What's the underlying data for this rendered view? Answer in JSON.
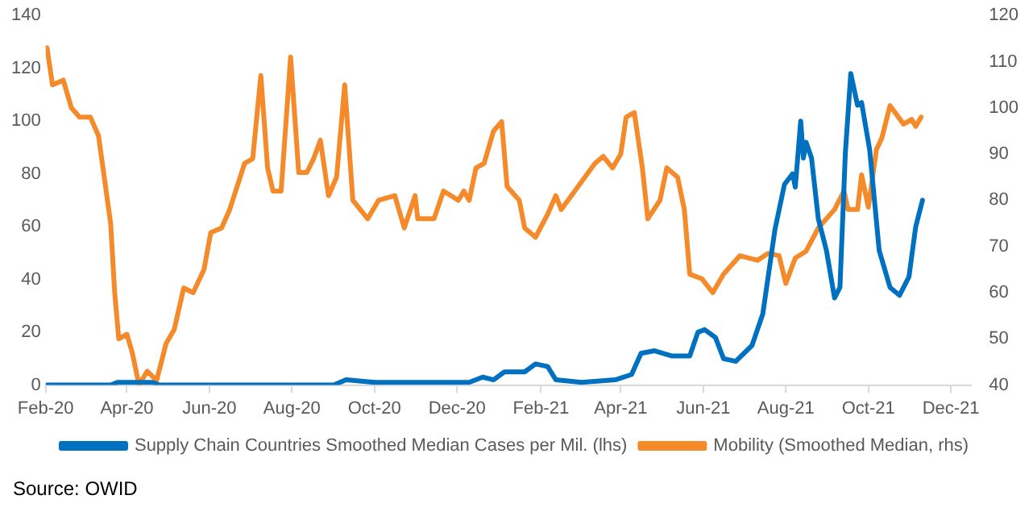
{
  "chart_data": {
    "type": "line",
    "annotations": [
      "Source: OWID"
    ],
    "xlim": [
      "2020-02-01",
      "2021-12-16"
    ],
    "xticks": [
      {
        "value": "2020-02-01",
        "label": "Feb-20"
      },
      {
        "value": "2020-04-01",
        "label": "Apr-20"
      },
      {
        "value": "2020-06-01",
        "label": "Jun-20"
      },
      {
        "value": "2020-08-01",
        "label": "Aug-20"
      },
      {
        "value": "2020-10-01",
        "label": "Oct-20"
      },
      {
        "value": "2020-12-01",
        "label": "Dec-20"
      },
      {
        "value": "2021-02-01",
        "label": "Feb-21"
      },
      {
        "value": "2021-04-01",
        "label": "Apr-21"
      },
      {
        "value": "2021-06-01",
        "label": "Jun-21"
      },
      {
        "value": "2021-08-01",
        "label": "Aug-21"
      },
      {
        "value": "2021-10-01",
        "label": "Oct-21"
      },
      {
        "value": "2021-12-01",
        "label": "Dec-21"
      }
    ],
    "ylim": [
      0,
      140
    ],
    "yticks": [
      0,
      20,
      40,
      60,
      80,
      100,
      120,
      140
    ],
    "y2lim": [
      40,
      120
    ],
    "y2ticks": [
      40,
      50,
      60,
      70,
      80,
      90,
      100,
      110,
      120
    ],
    "grid": false,
    "legend": "bottom",
    "marker": "none",
    "line_style": "solid",
    "series": [
      {
        "name": "Supply Chain Countries Smoothed Median Cases per Mil. (lhs)",
        "color": "#0070c0",
        "x": [
          "2020-02-02",
          "2020-03-20",
          "2020-03-25",
          "2020-04-20",
          "2020-04-25",
          "2020-09-01",
          "2020-09-10",
          "2020-10-01",
          "2020-11-20",
          "2020-12-10",
          "2020-12-20",
          "2020-12-28",
          "2021-01-05",
          "2021-01-20",
          "2021-01-28",
          "2021-02-06",
          "2021-02-12",
          "2021-03-03",
          "2021-03-28",
          "2021-04-09",
          "2021-04-16",
          "2021-04-26",
          "2021-05-09",
          "2021-05-22",
          "2021-05-28",
          "2021-06-02",
          "2021-06-10",
          "2021-06-16",
          "2021-06-25",
          "2021-07-07",
          "2021-07-15",
          "2021-07-24",
          "2021-07-31",
          "2021-08-06",
          "2021-08-08",
          "2021-08-12",
          "2021-08-14",
          "2021-08-16",
          "2021-08-20",
          "2021-08-25",
          "2021-08-31",
          "2021-09-06",
          "2021-09-10",
          "2021-09-14",
          "2021-09-18",
          "2021-09-23",
          "2021-09-26",
          "2021-10-02",
          "2021-10-09",
          "2021-10-17",
          "2021-10-24",
          "2021-10-31",
          "2021-11-05",
          "2021-11-10"
        ],
        "values": [
          0,
          0,
          1,
          1,
          0,
          0,
          2,
          1,
          1,
          1,
          3,
          2,
          5,
          5,
          8,
          7,
          2,
          1,
          2,
          4,
          12,
          13,
          11,
          11,
          20,
          21,
          18,
          10,
          9,
          15,
          27,
          59,
          76,
          80,
          75,
          100,
          86,
          92,
          86,
          63,
          51,
          33,
          37,
          88,
          118,
          106,
          107,
          89,
          51,
          37,
          34,
          41,
          60,
          70
        ]
      },
      {
        "name": "Mobility (Smoothed Median, rhs)",
        "color": "#f58a2a",
        "axis": "y2",
        "x": [
          "2020-02-02",
          "2020-02-06",
          "2020-02-14",
          "2020-02-20",
          "2020-02-26",
          "2020-03-05",
          "2020-03-11",
          "2020-03-20",
          "2020-03-23",
          "2020-03-26",
          "2020-04-01",
          "2020-04-05",
          "2020-04-10",
          "2020-04-16",
          "2020-04-23",
          "2020-04-30",
          "2020-05-06",
          "2020-05-13",
          "2020-05-20",
          "2020-05-28",
          "2020-06-02",
          "2020-06-10",
          "2020-06-16",
          "2020-06-27",
          "2020-07-03",
          "2020-07-09",
          "2020-07-14",
          "2020-07-18",
          "2020-07-24",
          "2020-07-31",
          "2020-08-06",
          "2020-08-12",
          "2020-08-17",
          "2020-08-22",
          "2020-08-28",
          "2020-09-03",
          "2020-09-09",
          "2020-09-15",
          "2020-09-26",
          "2020-10-04",
          "2020-10-16",
          "2020-10-23",
          "2020-10-31",
          "2020-11-02",
          "2020-11-14",
          "2020-11-21",
          "2020-12-02",
          "2020-12-06",
          "2020-12-10",
          "2020-12-15",
          "2020-12-21",
          "2020-12-28",
          "2021-01-03",
          "2021-01-07",
          "2021-01-16",
          "2021-01-20",
          "2021-01-28",
          "2021-02-06",
          "2021-02-12",
          "2021-02-16",
          "2021-02-21",
          "2021-03-03",
          "2021-03-13",
          "2021-03-19",
          "2021-03-26",
          "2021-04-01",
          "2021-04-05",
          "2021-04-11",
          "2021-04-17",
          "2021-04-21",
          "2021-04-30",
          "2021-05-05",
          "2021-05-13",
          "2021-05-18",
          "2021-05-22",
          "2021-05-31",
          "2021-06-08",
          "2021-06-16",
          "2021-06-28",
          "2021-07-11",
          "2021-07-19",
          "2021-07-27",
          "2021-08-01",
          "2021-08-08",
          "2021-08-16",
          "2021-08-25",
          "2021-09-06",
          "2021-09-13",
          "2021-09-16",
          "2021-09-23",
          "2021-09-26",
          "2021-10-01",
          "2021-10-07",
          "2021-10-11",
          "2021-10-17",
          "2021-10-27",
          "2021-11-02",
          "2021-11-05",
          "2021-11-09"
        ],
        "values": [
          113,
          105,
          106,
          100,
          98,
          98,
          94,
          75,
          60,
          50,
          51,
          47,
          40,
          43,
          41,
          49,
          52,
          61,
          60,
          65,
          73,
          74,
          78,
          88,
          89,
          107,
          87,
          82,
          82,
          111,
          86,
          86,
          89,
          93,
          81,
          85,
          105,
          80,
          76,
          80,
          81,
          74,
          81,
          76,
          76,
          82,
          80,
          82,
          80,
          87,
          88,
          95,
          97,
          83,
          80,
          74,
          72,
          77,
          81,
          78,
          80,
          84,
          88,
          89.5,
          87,
          90,
          98,
          99,
          87,
          76,
          80,
          87,
          85,
          78,
          64,
          63,
          60,
          64,
          68,
          67,
          68.5,
          68,
          62,
          67.5,
          69,
          74,
          78,
          82,
          78,
          78,
          85.5,
          78.5,
          91,
          93.5,
          100.5,
          96.5,
          97.5,
          96,
          98
        ]
      }
    ]
  }
}
